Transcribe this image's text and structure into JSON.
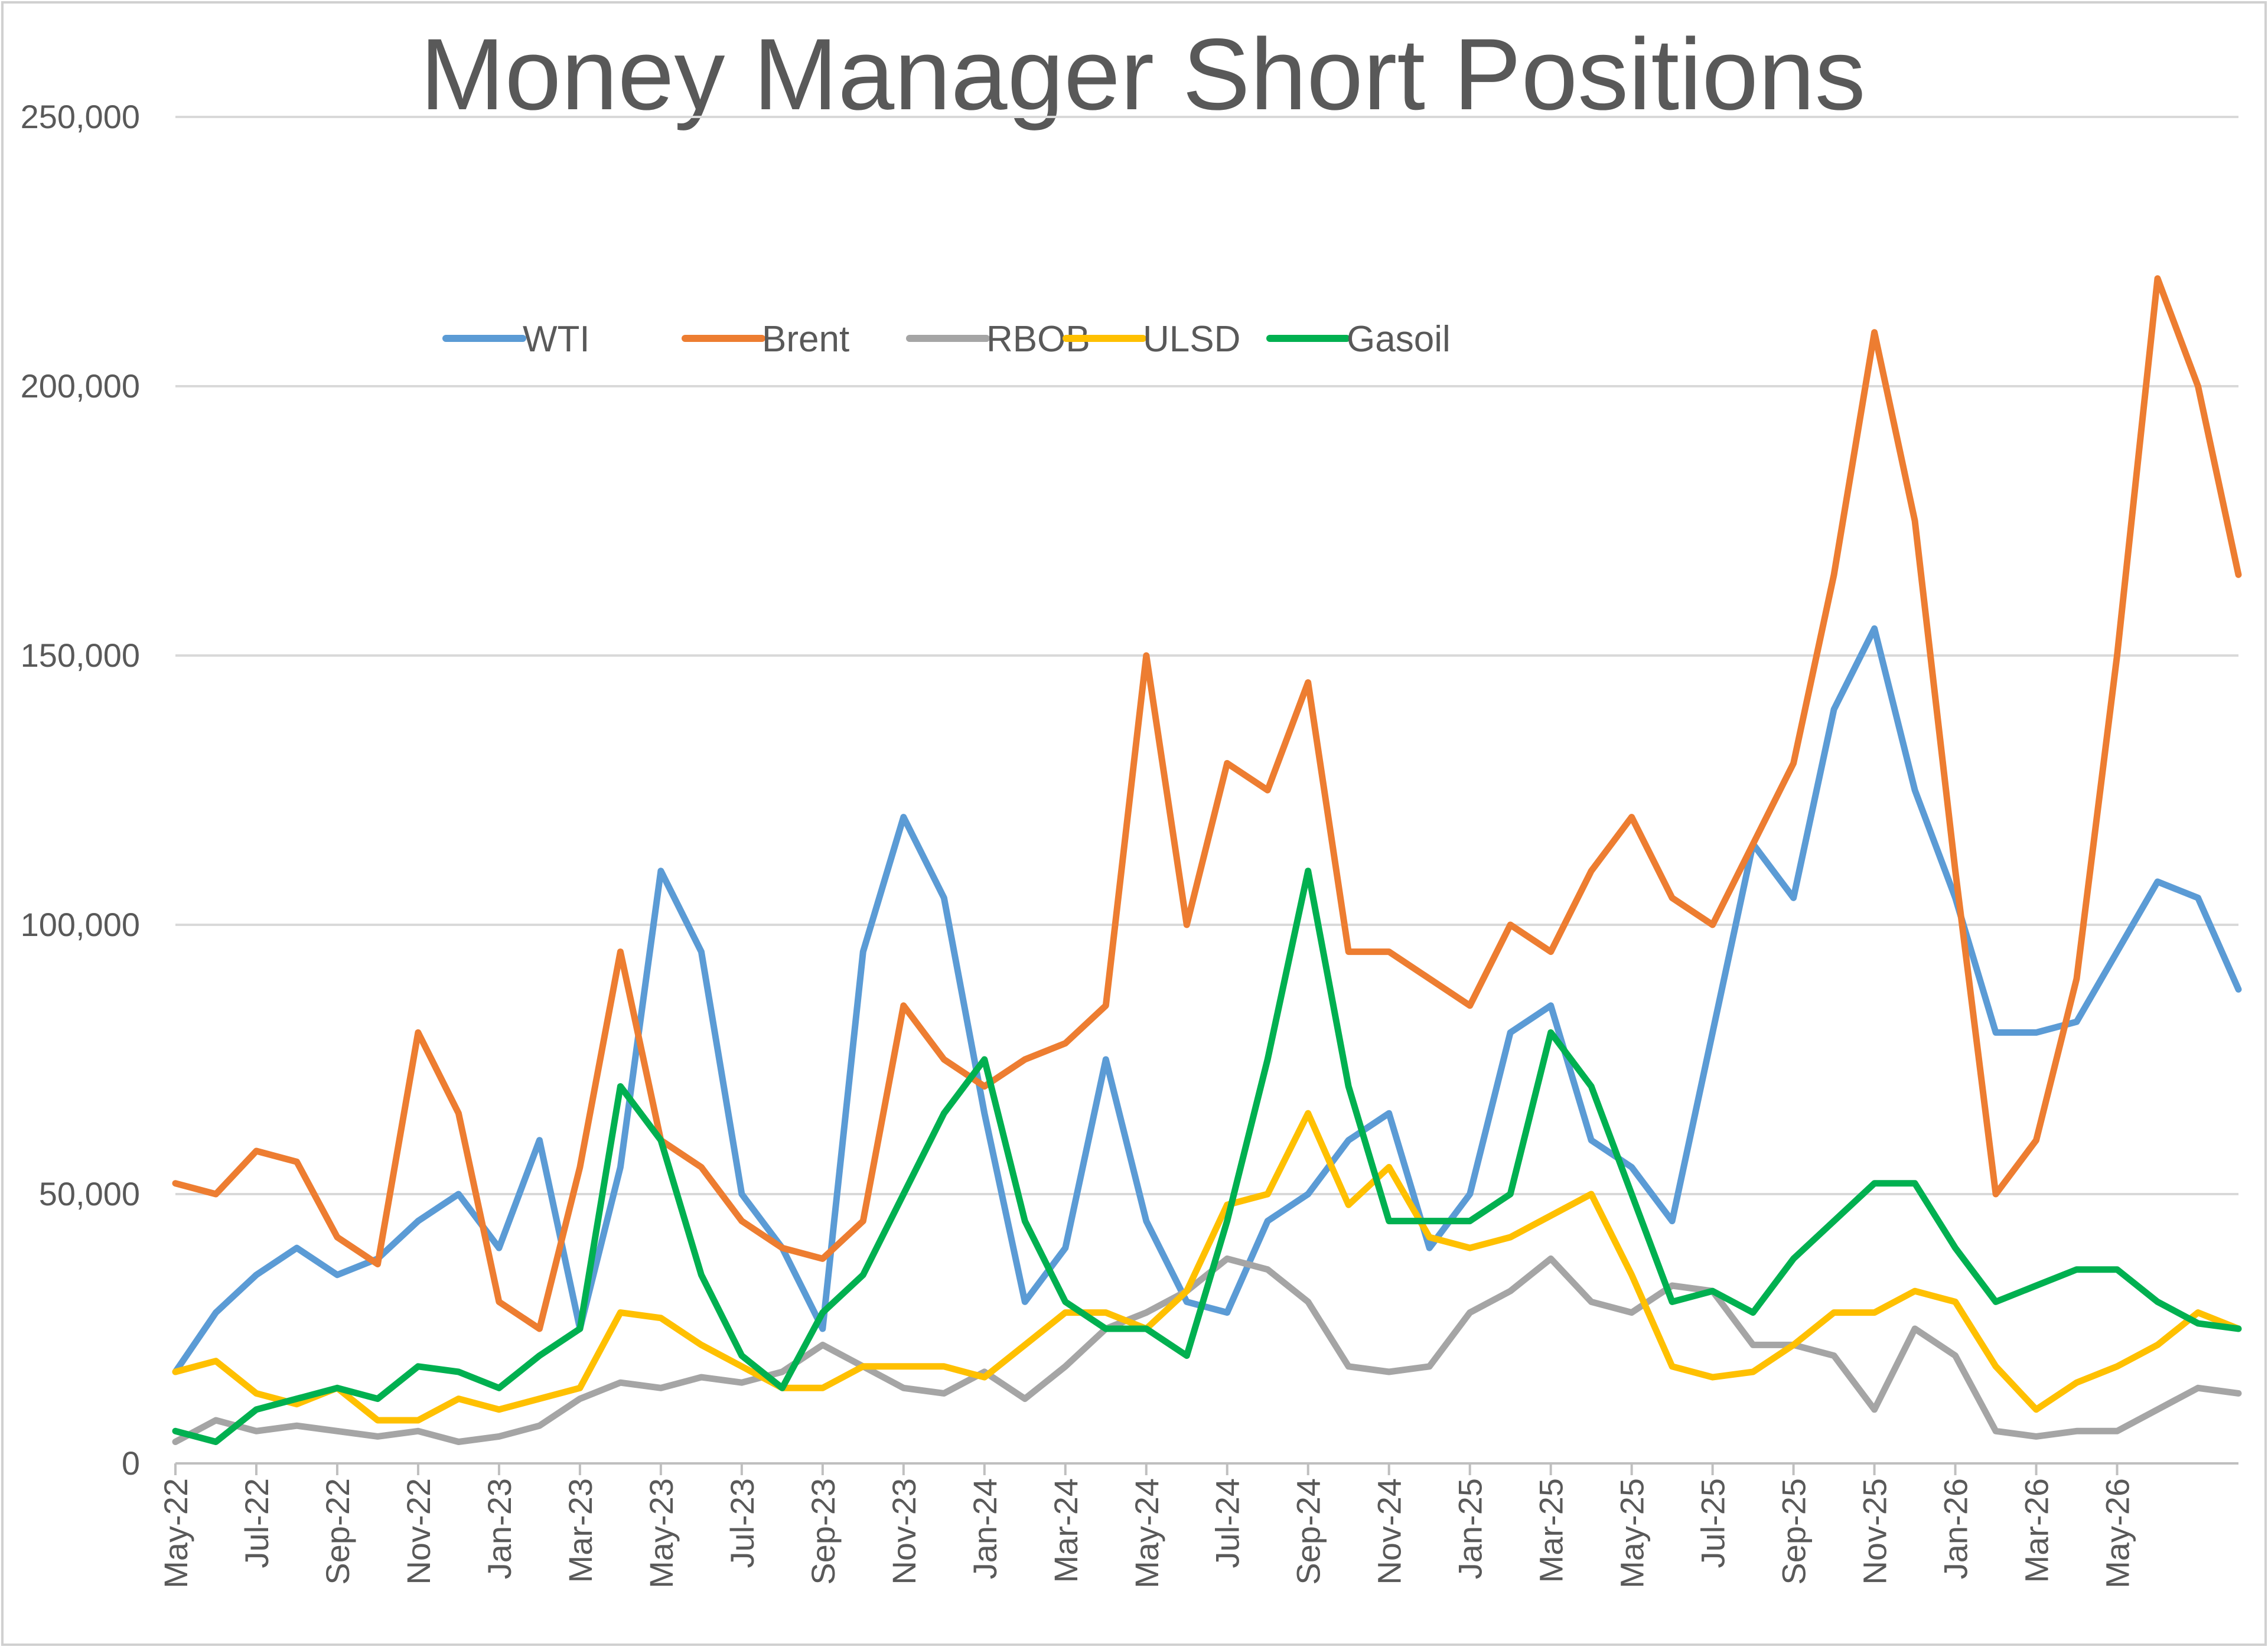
{
  "chart_data": {
    "type": "line",
    "title": "Money Manager Short Positions",
    "xlabel": "",
    "ylabel": "",
    "ylim": [
      0,
      250000
    ],
    "y_ticks": [
      "0",
      "50,000",
      "100,000",
      "150,000",
      "200,000",
      "250,000"
    ],
    "y_tick_values": [
      0,
      50000,
      100000,
      150000,
      200000,
      250000
    ],
    "x_range": [
      "May-22",
      "Aug-26"
    ],
    "x_ticks": [
      "May-22",
      "Jul-22",
      "Sep-22",
      "Nov-22",
      "Jan-23",
      "Mar-23",
      "May-23",
      "Jul-23",
      "Sep-23",
      "Nov-23",
      "Jan-24",
      "Mar-24",
      "May-24",
      "Jul-24",
      "Sep-24",
      "Nov-24",
      "Jan-25",
      "Mar-25",
      "May-25",
      "Jul-25",
      "Sep-25",
      "Nov-25",
      "Jan-26",
      "Mar-26",
      "May-26"
    ],
    "grid": "horizontal",
    "legend_position": "top-left",
    "series": [
      {
        "name": "WTI",
        "color": "#5b9bd5",
        "points": [
          [
            "May-22",
            17000
          ],
          [
            "Jun-22",
            28000
          ],
          [
            "Jul-22",
            35000
          ],
          [
            "Aug-22",
            40000
          ],
          [
            "Sep-22",
            35000
          ],
          [
            "Oct-22",
            38000
          ],
          [
            "Nov-22",
            45000
          ],
          [
            "Dec-22",
            50000
          ],
          [
            "Jan-23",
            40000
          ],
          [
            "Feb-23",
            60000
          ],
          [
            "Mar-23",
            25000
          ],
          [
            "Apr-23",
            55000
          ],
          [
            "May-23",
            110000
          ],
          [
            "Jun-23",
            95000
          ],
          [
            "Jul-23",
            50000
          ],
          [
            "Aug-23",
            40000
          ],
          [
            "Sep-23",
            25000
          ],
          [
            "Oct-23",
            95000
          ],
          [
            "Nov-23",
            120000
          ],
          [
            "Dec-23",
            105000
          ],
          [
            "Jan-24",
            65000
          ],
          [
            "Feb-24",
            30000
          ],
          [
            "Mar-24",
            40000
          ],
          [
            "Apr-24",
            75000
          ],
          [
            "May-24",
            45000
          ],
          [
            "Jun-24",
            30000
          ],
          [
            "Jul-24",
            28000
          ],
          [
            "Aug-24",
            45000
          ],
          [
            "Sep-24",
            50000
          ],
          [
            "Oct-24",
            60000
          ],
          [
            "Nov-24",
            65000
          ],
          [
            "Dec-24",
            40000
          ],
          [
            "Jan-25",
            50000
          ],
          [
            "Feb-25",
            80000
          ],
          [
            "Mar-25",
            85000
          ],
          [
            "Apr-25",
            60000
          ],
          [
            "May-25",
            55000
          ],
          [
            "Jun-25",
            45000
          ],
          [
            "Jul-25",
            80000
          ],
          [
            "Aug-25",
            115000
          ],
          [
            "Sep-25",
            105000
          ],
          [
            "Oct-25",
            140000
          ],
          [
            "Nov-25",
            155000
          ],
          [
            "Dec-25",
            125000
          ],
          [
            "Jan-26",
            105000
          ],
          [
            "Feb-26",
            80000
          ],
          [
            "Mar-26",
            80000
          ],
          [
            "Apr-26",
            82000
          ],
          [
            "May-26",
            95000
          ],
          [
            "Jun-26",
            108000
          ],
          [
            "Jul-26",
            105000
          ],
          [
            "Aug-26",
            88000
          ]
        ]
      },
      {
        "name": "Brent",
        "color": "#ed7d31",
        "points": [
          [
            "May-22",
            52000
          ],
          [
            "Jun-22",
            50000
          ],
          [
            "Jul-22",
            58000
          ],
          [
            "Aug-22",
            56000
          ],
          [
            "Sep-22",
            42000
          ],
          [
            "Oct-22",
            37000
          ],
          [
            "Nov-22",
            80000
          ],
          [
            "Dec-22",
            65000
          ],
          [
            "Jan-23",
            30000
          ],
          [
            "Feb-23",
            25000
          ],
          [
            "Mar-23",
            55000
          ],
          [
            "Apr-23",
            95000
          ],
          [
            "May-23",
            60000
          ],
          [
            "Jun-23",
            55000
          ],
          [
            "Jul-23",
            45000
          ],
          [
            "Aug-23",
            40000
          ],
          [
            "Sep-23",
            38000
          ],
          [
            "Oct-23",
            45000
          ],
          [
            "Nov-23",
            85000
          ],
          [
            "Dec-23",
            75000
          ],
          [
            "Jan-24",
            70000
          ],
          [
            "Feb-24",
            75000
          ],
          [
            "Mar-24",
            78000
          ],
          [
            "Apr-24",
            85000
          ],
          [
            "May-24",
            150000
          ],
          [
            "Jun-24",
            100000
          ],
          [
            "Jul-24",
            130000
          ],
          [
            "Aug-24",
            125000
          ],
          [
            "Sep-24",
            145000
          ],
          [
            "Oct-24",
            95000
          ],
          [
            "Nov-24",
            95000
          ],
          [
            "Dec-24",
            90000
          ],
          [
            "Jan-25",
            85000
          ],
          [
            "Feb-25",
            100000
          ],
          [
            "Mar-25",
            95000
          ],
          [
            "Apr-25",
            110000
          ],
          [
            "May-25",
            120000
          ],
          [
            "Jun-25",
            105000
          ],
          [
            "Jul-25",
            100000
          ],
          [
            "Aug-25",
            115000
          ],
          [
            "Sep-25",
            130000
          ],
          [
            "Oct-25",
            165000
          ],
          [
            "Nov-25",
            210000
          ],
          [
            "Dec-25",
            175000
          ],
          [
            "Jan-26",
            110000
          ],
          [
            "Feb-26",
            50000
          ],
          [
            "Mar-26",
            60000
          ],
          [
            "Apr-26",
            90000
          ],
          [
            "May-26",
            150000
          ],
          [
            "Jun-26",
            220000
          ],
          [
            "Jul-26",
            200000
          ],
          [
            "Aug-26",
            165000
          ]
        ]
      },
      {
        "name": "RBOB",
        "color": "#a5a5a5",
        "points": [
          [
            "May-22",
            4000
          ],
          [
            "Jun-22",
            8000
          ],
          [
            "Jul-22",
            6000
          ],
          [
            "Aug-22",
            7000
          ],
          [
            "Sep-22",
            6000
          ],
          [
            "Oct-22",
            5000
          ],
          [
            "Nov-22",
            6000
          ],
          [
            "Dec-22",
            4000
          ],
          [
            "Jan-23",
            5000
          ],
          [
            "Feb-23",
            7000
          ],
          [
            "Mar-23",
            12000
          ],
          [
            "Apr-23",
            15000
          ],
          [
            "May-23",
            14000
          ],
          [
            "Jun-23",
            16000
          ],
          [
            "Jul-23",
            15000
          ],
          [
            "Aug-23",
            17000
          ],
          [
            "Sep-23",
            22000
          ],
          [
            "Oct-23",
            18000
          ],
          [
            "Nov-23",
            14000
          ],
          [
            "Dec-23",
            13000
          ],
          [
            "Jan-24",
            17000
          ],
          [
            "Feb-24",
            12000
          ],
          [
            "Mar-24",
            18000
          ],
          [
            "Apr-24",
            25000
          ],
          [
            "May-24",
            28000
          ],
          [
            "Jun-24",
            32000
          ],
          [
            "Jul-24",
            38000
          ],
          [
            "Aug-24",
            36000
          ],
          [
            "Sep-24",
            30000
          ],
          [
            "Oct-24",
            18000
          ],
          [
            "Nov-24",
            17000
          ],
          [
            "Dec-24",
            18000
          ],
          [
            "Jan-25",
            28000
          ],
          [
            "Feb-25",
            32000
          ],
          [
            "Mar-25",
            38000
          ],
          [
            "Apr-25",
            30000
          ],
          [
            "May-25",
            28000
          ],
          [
            "Jun-25",
            33000
          ],
          [
            "Jul-25",
            32000
          ],
          [
            "Aug-25",
            22000
          ],
          [
            "Sep-25",
            22000
          ],
          [
            "Oct-25",
            20000
          ],
          [
            "Nov-25",
            10000
          ],
          [
            "Dec-25",
            25000
          ],
          [
            "Jan-26",
            20000
          ],
          [
            "Feb-26",
            6000
          ],
          [
            "Mar-26",
            5000
          ],
          [
            "Apr-26",
            6000
          ],
          [
            "May-26",
            6000
          ],
          [
            "Jun-26",
            10000
          ],
          [
            "Jul-26",
            14000
          ],
          [
            "Aug-26",
            13000
          ]
        ]
      },
      {
        "name": "ULSD",
        "color": "#ffc000",
        "points": [
          [
            "May-22",
            17000
          ],
          [
            "Jun-22",
            19000
          ],
          [
            "Jul-22",
            13000
          ],
          [
            "Aug-22",
            11000
          ],
          [
            "Sep-22",
            14000
          ],
          [
            "Oct-22",
            8000
          ],
          [
            "Nov-22",
            8000
          ],
          [
            "Dec-22",
            12000
          ],
          [
            "Jan-23",
            10000
          ],
          [
            "Feb-23",
            12000
          ],
          [
            "Mar-23",
            14000
          ],
          [
            "Apr-23",
            28000
          ],
          [
            "May-23",
            27000
          ],
          [
            "Jun-23",
            22000
          ],
          [
            "Jul-23",
            18000
          ],
          [
            "Aug-23",
            14000
          ],
          [
            "Sep-23",
            14000
          ],
          [
            "Oct-23",
            18000
          ],
          [
            "Nov-23",
            18000
          ],
          [
            "Dec-23",
            18000
          ],
          [
            "Jan-24",
            16000
          ],
          [
            "Feb-24",
            22000
          ],
          [
            "Mar-24",
            28000
          ],
          [
            "Apr-24",
            28000
          ],
          [
            "May-24",
            25000
          ],
          [
            "Jun-24",
            32000
          ],
          [
            "Jul-24",
            48000
          ],
          [
            "Aug-24",
            50000
          ],
          [
            "Sep-24",
            65000
          ],
          [
            "Oct-24",
            48000
          ],
          [
            "Nov-24",
            55000
          ],
          [
            "Dec-24",
            42000
          ],
          [
            "Jan-25",
            40000
          ],
          [
            "Feb-25",
            42000
          ],
          [
            "Mar-25",
            46000
          ],
          [
            "Apr-25",
            50000
          ],
          [
            "May-25",
            35000
          ],
          [
            "Jun-25",
            18000
          ],
          [
            "Jul-25",
            16000
          ],
          [
            "Aug-25",
            17000
          ],
          [
            "Sep-25",
            22000
          ],
          [
            "Oct-25",
            28000
          ],
          [
            "Nov-25",
            28000
          ],
          [
            "Dec-25",
            32000
          ],
          [
            "Jan-26",
            30000
          ],
          [
            "Feb-26",
            18000
          ],
          [
            "Mar-26",
            10000
          ],
          [
            "Apr-26",
            15000
          ],
          [
            "May-26",
            18000
          ],
          [
            "Jun-26",
            22000
          ],
          [
            "Jul-26",
            28000
          ],
          [
            "Aug-26",
            25000
          ]
        ]
      },
      {
        "name": "Gasoil",
        "color": "#00b050",
        "points": [
          [
            "May-22",
            6000
          ],
          [
            "Jun-22",
            4000
          ],
          [
            "Jul-22",
            10000
          ],
          [
            "Aug-22",
            12000
          ],
          [
            "Sep-22",
            14000
          ],
          [
            "Oct-22",
            12000
          ],
          [
            "Nov-22",
            18000
          ],
          [
            "Dec-22",
            17000
          ],
          [
            "Jan-23",
            14000
          ],
          [
            "Feb-23",
            20000
          ],
          [
            "Mar-23",
            25000
          ],
          [
            "Apr-23",
            70000
          ],
          [
            "May-23",
            60000
          ],
          [
            "Jun-23",
            35000
          ],
          [
            "Jul-23",
            20000
          ],
          [
            "Aug-23",
            14000
          ],
          [
            "Sep-23",
            28000
          ],
          [
            "Oct-23",
            35000
          ],
          [
            "Nov-23",
            50000
          ],
          [
            "Dec-23",
            65000
          ],
          [
            "Jan-24",
            75000
          ],
          [
            "Feb-24",
            45000
          ],
          [
            "Mar-24",
            30000
          ],
          [
            "Apr-24",
            25000
          ],
          [
            "May-24",
            25000
          ],
          [
            "Jun-24",
            20000
          ],
          [
            "Jul-24",
            45000
          ],
          [
            "Aug-24",
            75000
          ],
          [
            "Sep-24",
            110000
          ],
          [
            "Oct-24",
            70000
          ],
          [
            "Nov-24",
            45000
          ],
          [
            "Dec-24",
            45000
          ],
          [
            "Jan-25",
            45000
          ],
          [
            "Feb-25",
            50000
          ],
          [
            "Mar-25",
            80000
          ],
          [
            "Apr-25",
            70000
          ],
          [
            "May-25",
            50000
          ],
          [
            "Jun-25",
            30000
          ],
          [
            "Jul-25",
            32000
          ],
          [
            "Aug-25",
            28000
          ],
          [
            "Sep-25",
            38000
          ],
          [
            "Oct-25",
            45000
          ],
          [
            "Nov-25",
            52000
          ],
          [
            "Dec-25",
            52000
          ],
          [
            "Jan-26",
            40000
          ],
          [
            "Feb-26",
            30000
          ],
          [
            "Mar-26",
            33000
          ],
          [
            "Apr-26",
            36000
          ],
          [
            "May-26",
            36000
          ],
          [
            "Jun-26",
            30000
          ],
          [
            "Jul-26",
            26000
          ],
          [
            "Aug-26",
            25000
          ]
        ]
      }
    ]
  }
}
